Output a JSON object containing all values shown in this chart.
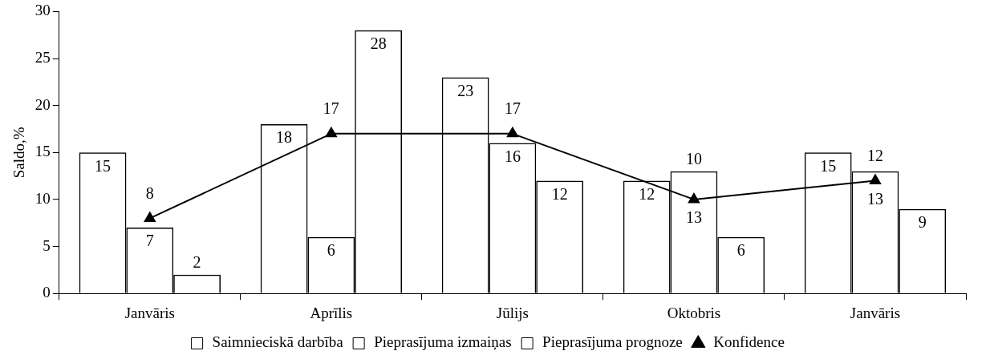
{
  "chart_data": {
    "type": "bar",
    "ylabel": "Saldo,%",
    "categories": [
      "Janvāris",
      "Aprīlis",
      "Jūlijs",
      "Oktobris",
      "Janvāris"
    ],
    "series": [
      {
        "name": "Saimnieciskā darbība",
        "color": "#000000",
        "values": [
          15,
          18,
          23,
          12,
          15
        ]
      },
      {
        "name": "Pieprasījuma izmaiņas",
        "color": "#000000",
        "values": [
          7,
          6,
          16,
          13,
          13
        ]
      },
      {
        "name": "Pieprasījuma prognoze",
        "color": "#000000",
        "values": [
          2,
          28,
          12,
          6,
          9
        ]
      },
      {
        "name": "Konfidence",
        "type": "line",
        "color": "#000000",
        "marker": "triangle",
        "values": [
          8,
          17,
          17,
          10,
          12
        ]
      }
    ],
    "ylim": [
      0,
      30
    ],
    "yticks": [
      0,
      5,
      10,
      15,
      20,
      25,
      30
    ],
    "grid": false,
    "legend": "bottom",
    "data_labels": true
  }
}
